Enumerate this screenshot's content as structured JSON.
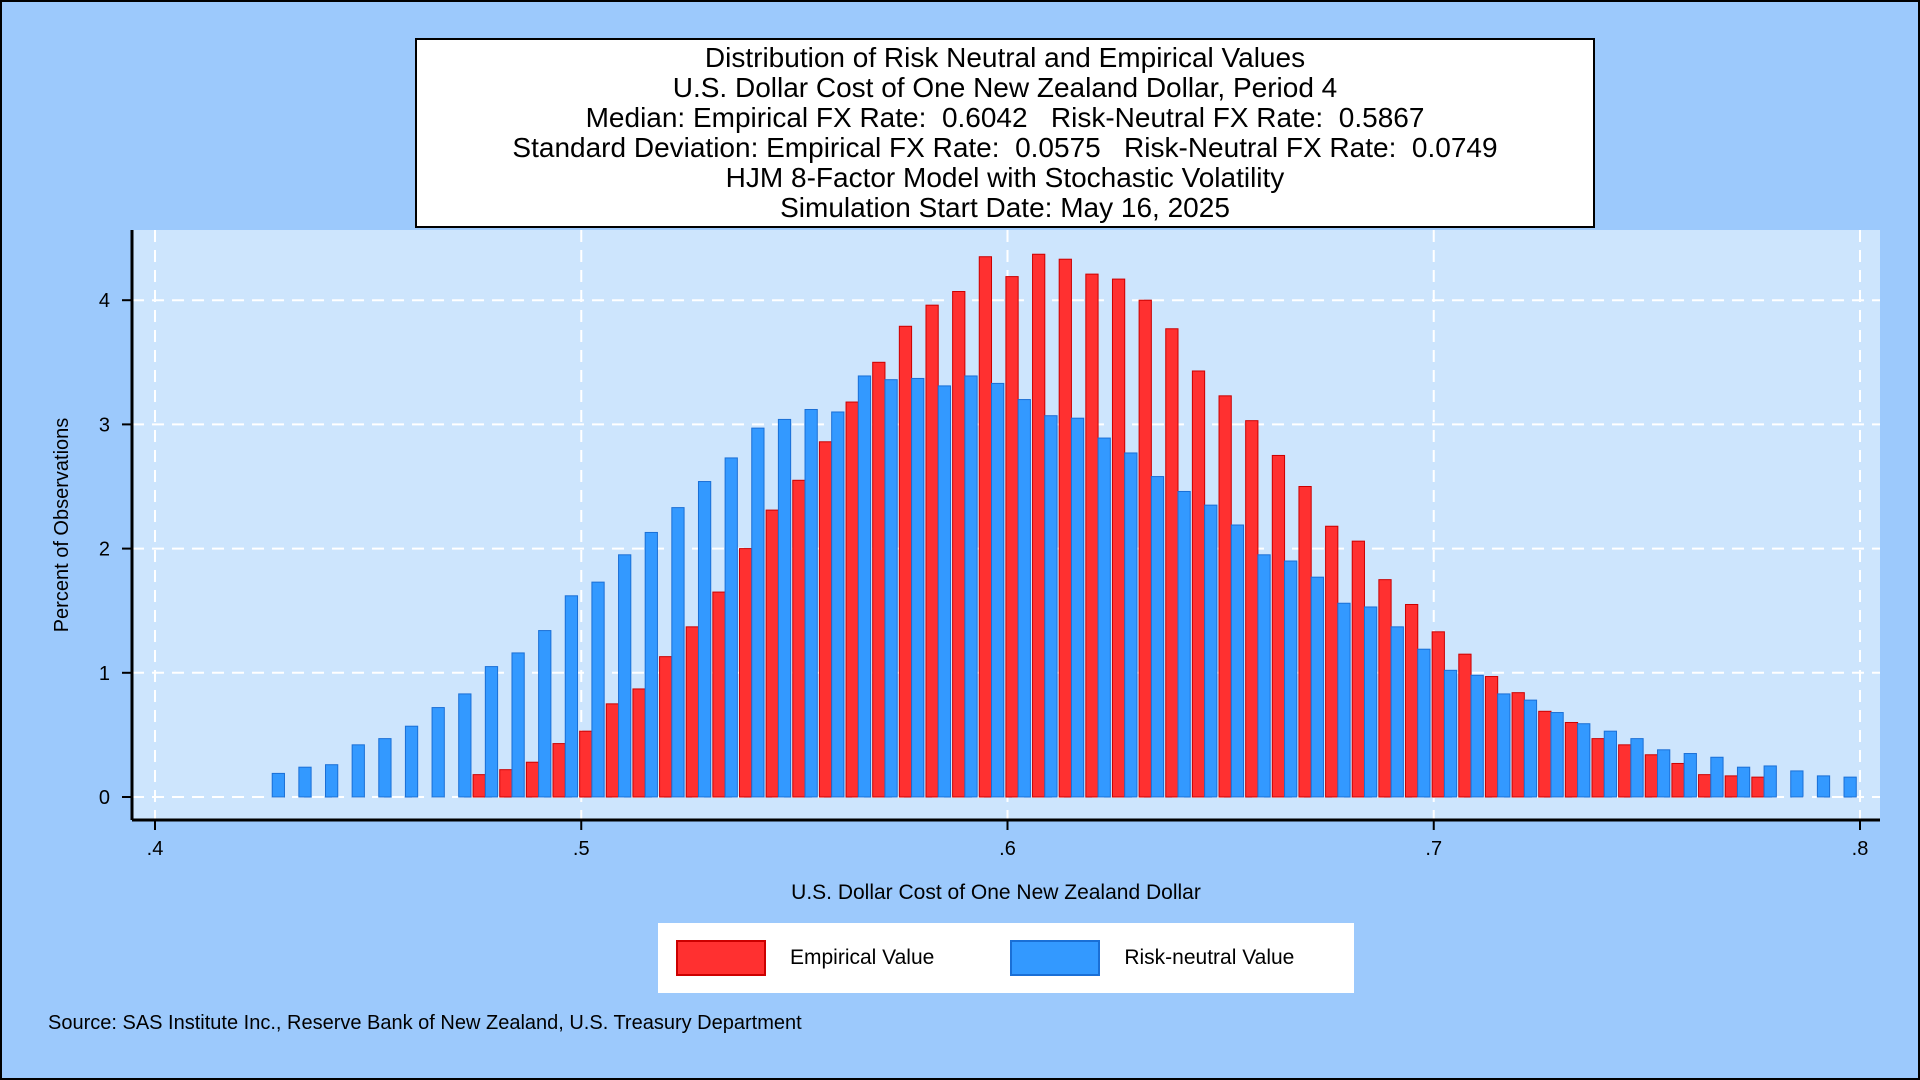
{
  "title_lines": [
    "Distribution of Risk Neutral and Empirical Values",
    "U.S. Dollar Cost of One New Zealand Dollar, Period 4",
    "Median: Empirical FX Rate:  0.6042   Risk-Neutral FX Rate:  0.5867",
    "Standard Deviation: Empirical FX Rate:  0.0575   Risk-Neutral FX Rate:  0.0749",
    "HJM 8-Factor Model with Stochastic Volatility",
    "Simulation Start Date: May 16, 2025"
  ],
  "source": "Source: SAS Institute Inc., Reserve Bank of New Zealand, U.S. Treasury Department",
  "colors": {
    "empirical": "#ff3030",
    "empirical_edge": "#cc0000",
    "risk_neutral": "#3399ff",
    "risk_neutral_edge": "#1a6fd6",
    "plot_bg": "#cde5fd",
    "page_bg": "#9cc9fc"
  },
  "legend": [
    {
      "label": "Empirical Value",
      "series": "empirical"
    },
    {
      "label": "Risk-neutral Value",
      "series": "risk_neutral"
    }
  ],
  "chart_data": {
    "type": "bar",
    "xlabel": "U.S. Dollar Cost of One New Zealand Dollar",
    "ylabel": "Percent of Observations",
    "xlim": [
      0.4,
      0.8
    ],
    "ylim": [
      0,
      4.5
    ],
    "xticks": [
      0.4,
      0.5,
      0.6,
      0.7,
      0.8
    ],
    "xtick_labels": [
      ".4",
      ".5",
      ".6",
      ".7",
      ".8"
    ],
    "yticks": [
      0,
      1,
      2,
      3,
      4
    ],
    "ytick_labels": [
      "0",
      "1",
      "2",
      "3",
      "4"
    ],
    "grid": true,
    "legend_position": "bottom",
    "bin_start": 0.4275,
    "bin_width": 0.00625,
    "series": [
      {
        "name": "Empirical Value",
        "key": "empirical",
        "values": [
          0,
          0,
          0,
          0,
          0,
          0,
          0,
          0,
          0.18,
          0.22,
          0.28,
          0.43,
          0.53,
          0.75,
          0.87,
          1.13,
          1.37,
          1.65,
          2.0,
          2.31,
          2.55,
          2.86,
          3.18,
          3.5,
          3.79,
          3.96,
          4.07,
          4.35,
          4.19,
          4.37,
          4.33,
          4.21,
          4.17,
          4.0,
          3.77,
          3.43,
          3.23,
          3.03,
          2.75,
          2.5,
          2.18,
          2.06,
          1.75,
          1.55,
          1.33,
          1.15,
          0.97,
          0.84,
          0.69,
          0.6,
          0.47,
          0.42,
          0.34,
          0.27,
          0.18,
          0.17,
          0.16,
          0,
          0,
          0,
          0,
          0,
          0,
          0
        ]
      },
      {
        "name": "Risk-neutral Value",
        "key": "risk_neutral",
        "values": [
          0.19,
          0.24,
          0.26,
          0.42,
          0.47,
          0.57,
          0.72,
          0.83,
          1.05,
          1.16,
          1.34,
          1.62,
          1.73,
          1.95,
          2.13,
          2.33,
          2.54,
          2.73,
          2.97,
          3.04,
          3.12,
          3.1,
          3.39,
          3.36,
          3.37,
          3.31,
          3.39,
          3.33,
          3.2,
          3.07,
          3.05,
          2.89,
          2.77,
          2.58,
          2.46,
          2.35,
          2.19,
          1.95,
          1.9,
          1.77,
          1.56,
          1.53,
          1.37,
          1.19,
          1.02,
          0.98,
          0.83,
          0.78,
          0.68,
          0.59,
          0.53,
          0.47,
          0.38,
          0.35,
          0.32,
          0.24,
          0.25,
          0.21,
          0.17,
          0.16,
          0,
          0,
          0,
          0
        ]
      }
    ]
  }
}
